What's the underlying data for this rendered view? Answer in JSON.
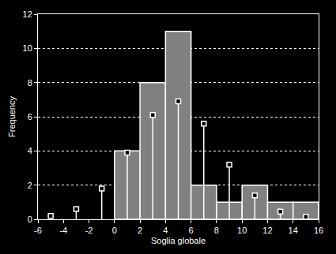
{
  "chart_data": {
    "type": "histogram",
    "x_label": "Soglia globale",
    "y_label": "Frequency",
    "bins": [
      0,
      2,
      4,
      6,
      8,
      10,
      12,
      14,
      16
    ],
    "values": [
      4,
      8,
      11,
      2,
      1,
      2,
      1,
      1
    ],
    "color": "#808080",
    "series": [
      {
        "type": "stem",
        "marker": "square",
        "color": "#ffffff",
        "x": [
          -5,
          -3,
          -1,
          1,
          3,
          5,
          7,
          9,
          11,
          13,
          15
        ],
        "values": [
          0.2,
          0.6,
          1.8,
          3.9,
          6.1,
          6.9,
          5.6,
          3.2,
          1.4,
          0.45,
          0.15
        ]
      }
    ],
    "xlim": [
      -6,
      16
    ],
    "xticks": [
      -6,
      -4,
      -2,
      0,
      2,
      4,
      6,
      8,
      10,
      12,
      14,
      16
    ],
    "ylim": [
      0,
      12
    ],
    "yticks": [
      0,
      2,
      4,
      6,
      8,
      10,
      12
    ],
    "grid": true
  }
}
